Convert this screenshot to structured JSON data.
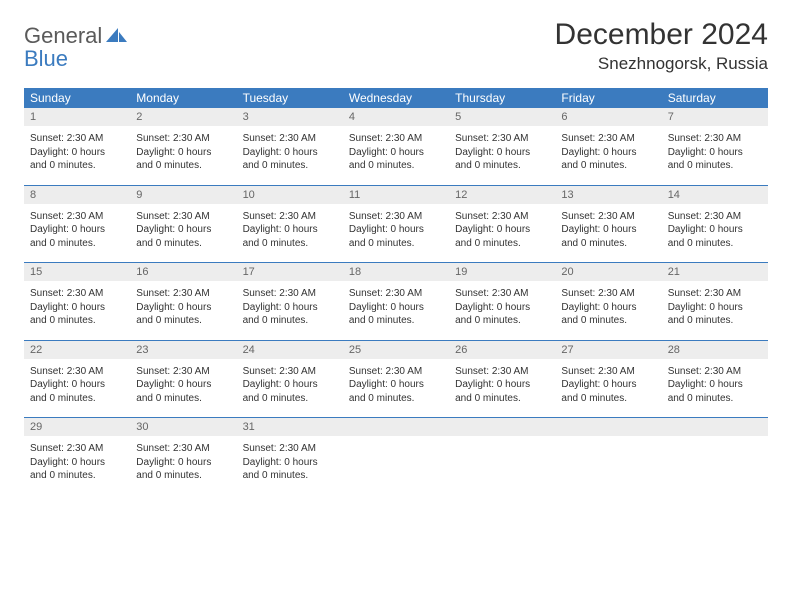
{
  "brand": {
    "word1": "General",
    "word2": "Blue",
    "color_general": "#5a5a5a",
    "color_blue": "#3b7bbf"
  },
  "header": {
    "month_title": "December 2024",
    "location": "Snezhnogorsk, Russia"
  },
  "calendar": {
    "header_bg": "#3b7bbf",
    "header_fg": "#ffffff",
    "daynum_bg": "#ededed",
    "divider_color": "#3b7bbf",
    "text_color": "#333333",
    "day_headers": [
      "Sunday",
      "Monday",
      "Tuesday",
      "Wednesday",
      "Thursday",
      "Friday",
      "Saturday"
    ],
    "weeks": [
      {
        "nums": [
          "1",
          "2",
          "3",
          "4",
          "5",
          "6",
          "7"
        ],
        "cells": [
          "Sunset: 2:30 AM\nDaylight: 0 hours and 0 minutes.",
          "Sunset: 2:30 AM\nDaylight: 0 hours and 0 minutes.",
          "Sunset: 2:30 AM\nDaylight: 0 hours and 0 minutes.",
          "Sunset: 2:30 AM\nDaylight: 0 hours and 0 minutes.",
          "Sunset: 2:30 AM\nDaylight: 0 hours and 0 minutes.",
          "Sunset: 2:30 AM\nDaylight: 0 hours and 0 minutes.",
          "Sunset: 2:30 AM\nDaylight: 0 hours and 0 minutes."
        ]
      },
      {
        "nums": [
          "8",
          "9",
          "10",
          "11",
          "12",
          "13",
          "14"
        ],
        "cells": [
          "Sunset: 2:30 AM\nDaylight: 0 hours and 0 minutes.",
          "Sunset: 2:30 AM\nDaylight: 0 hours and 0 minutes.",
          "Sunset: 2:30 AM\nDaylight: 0 hours and 0 minutes.",
          "Sunset: 2:30 AM\nDaylight: 0 hours and 0 minutes.",
          "Sunset: 2:30 AM\nDaylight: 0 hours and 0 minutes.",
          "Sunset: 2:30 AM\nDaylight: 0 hours and 0 minutes.",
          "Sunset: 2:30 AM\nDaylight: 0 hours and 0 minutes."
        ]
      },
      {
        "nums": [
          "15",
          "16",
          "17",
          "18",
          "19",
          "20",
          "21"
        ],
        "cells": [
          "Sunset: 2:30 AM\nDaylight: 0 hours and 0 minutes.",
          "Sunset: 2:30 AM\nDaylight: 0 hours and 0 minutes.",
          "Sunset: 2:30 AM\nDaylight: 0 hours and 0 minutes.",
          "Sunset: 2:30 AM\nDaylight: 0 hours and 0 minutes.",
          "Sunset: 2:30 AM\nDaylight: 0 hours and 0 minutes.",
          "Sunset: 2:30 AM\nDaylight: 0 hours and 0 minutes.",
          "Sunset: 2:30 AM\nDaylight: 0 hours and 0 minutes."
        ]
      },
      {
        "nums": [
          "22",
          "23",
          "24",
          "25",
          "26",
          "27",
          "28"
        ],
        "cells": [
          "Sunset: 2:30 AM\nDaylight: 0 hours and 0 minutes.",
          "Sunset: 2:30 AM\nDaylight: 0 hours and 0 minutes.",
          "Sunset: 2:30 AM\nDaylight: 0 hours and 0 minutes.",
          "Sunset: 2:30 AM\nDaylight: 0 hours and 0 minutes.",
          "Sunset: 2:30 AM\nDaylight: 0 hours and 0 minutes.",
          "Sunset: 2:30 AM\nDaylight: 0 hours and 0 minutes.",
          "Sunset: 2:30 AM\nDaylight: 0 hours and 0 minutes."
        ]
      },
      {
        "nums": [
          "29",
          "30",
          "31",
          "",
          "",
          "",
          ""
        ],
        "cells": [
          "Sunset: 2:30 AM\nDaylight: 0 hours and 0 minutes.",
          "Sunset: 2:30 AM\nDaylight: 0 hours and 0 minutes.",
          "Sunset: 2:30 AM\nDaylight: 0 hours and 0 minutes.",
          "",
          "",
          "",
          ""
        ]
      }
    ]
  }
}
